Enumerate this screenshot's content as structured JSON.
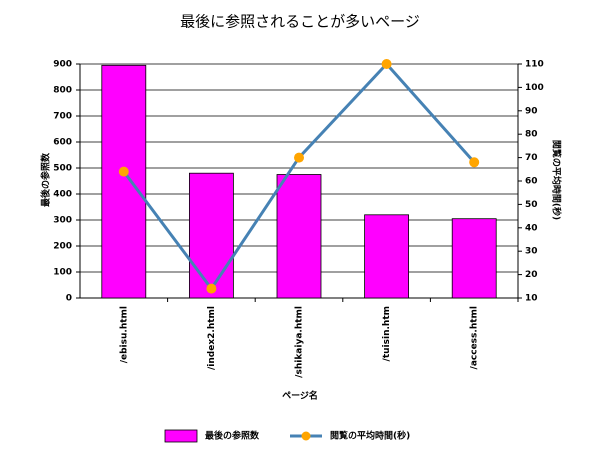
{
  "chart_data": {
    "type": "bar",
    "title": "最後に参照されることが多いページ",
    "x_label": "ページ名",
    "y_label": "最後の参照数",
    "y2_label": "閲覧の平均時間(秒)",
    "categories": [
      "/ebisu.html",
      "/index2.html",
      "/shikaiya.html",
      "/tuisin.htm",
      "/access.html"
    ],
    "series": [
      {
        "name": "最後の参照数",
        "type": "bar",
        "color": "#ff00ff",
        "values": [
          895,
          480,
          475,
          320,
          305
        ]
      },
      {
        "name": "閲覧の平均時間(秒)",
        "type": "line",
        "axis": "y2",
        "color": "#4682b4",
        "marker_color": "#ffa500",
        "values": [
          64,
          14,
          70,
          110,
          68
        ]
      }
    ],
    "ylim": [
      0,
      900
    ],
    "yticks": [
      0,
      100,
      200,
      300,
      400,
      500,
      600,
      700,
      800,
      900
    ],
    "y2lim": [
      10,
      110
    ],
    "y2ticks": [
      10,
      20,
      30,
      40,
      50,
      60,
      70,
      80,
      90,
      100,
      110
    ],
    "grid": true,
    "legend": "bottom"
  }
}
